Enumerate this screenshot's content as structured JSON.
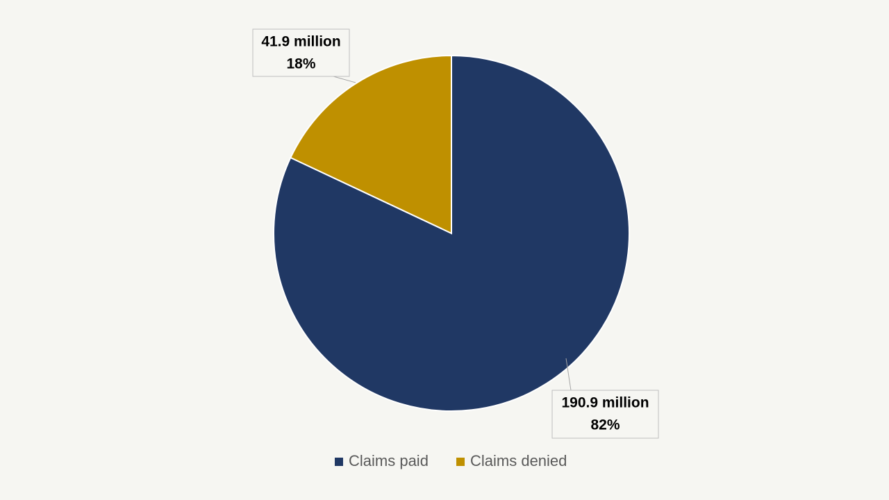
{
  "chart_data": {
    "type": "pie",
    "categories": [
      "Claims paid",
      "Claims denied"
    ],
    "values": [
      190.9,
      41.9
    ],
    "value_labels": [
      "190.9 million",
      "41.9 million"
    ],
    "percents": [
      82,
      18
    ],
    "percent_labels": [
      "82%",
      "18%"
    ],
    "colors": [
      "#203864",
      "#bf9000"
    ],
    "legend": "bottom"
  }
}
